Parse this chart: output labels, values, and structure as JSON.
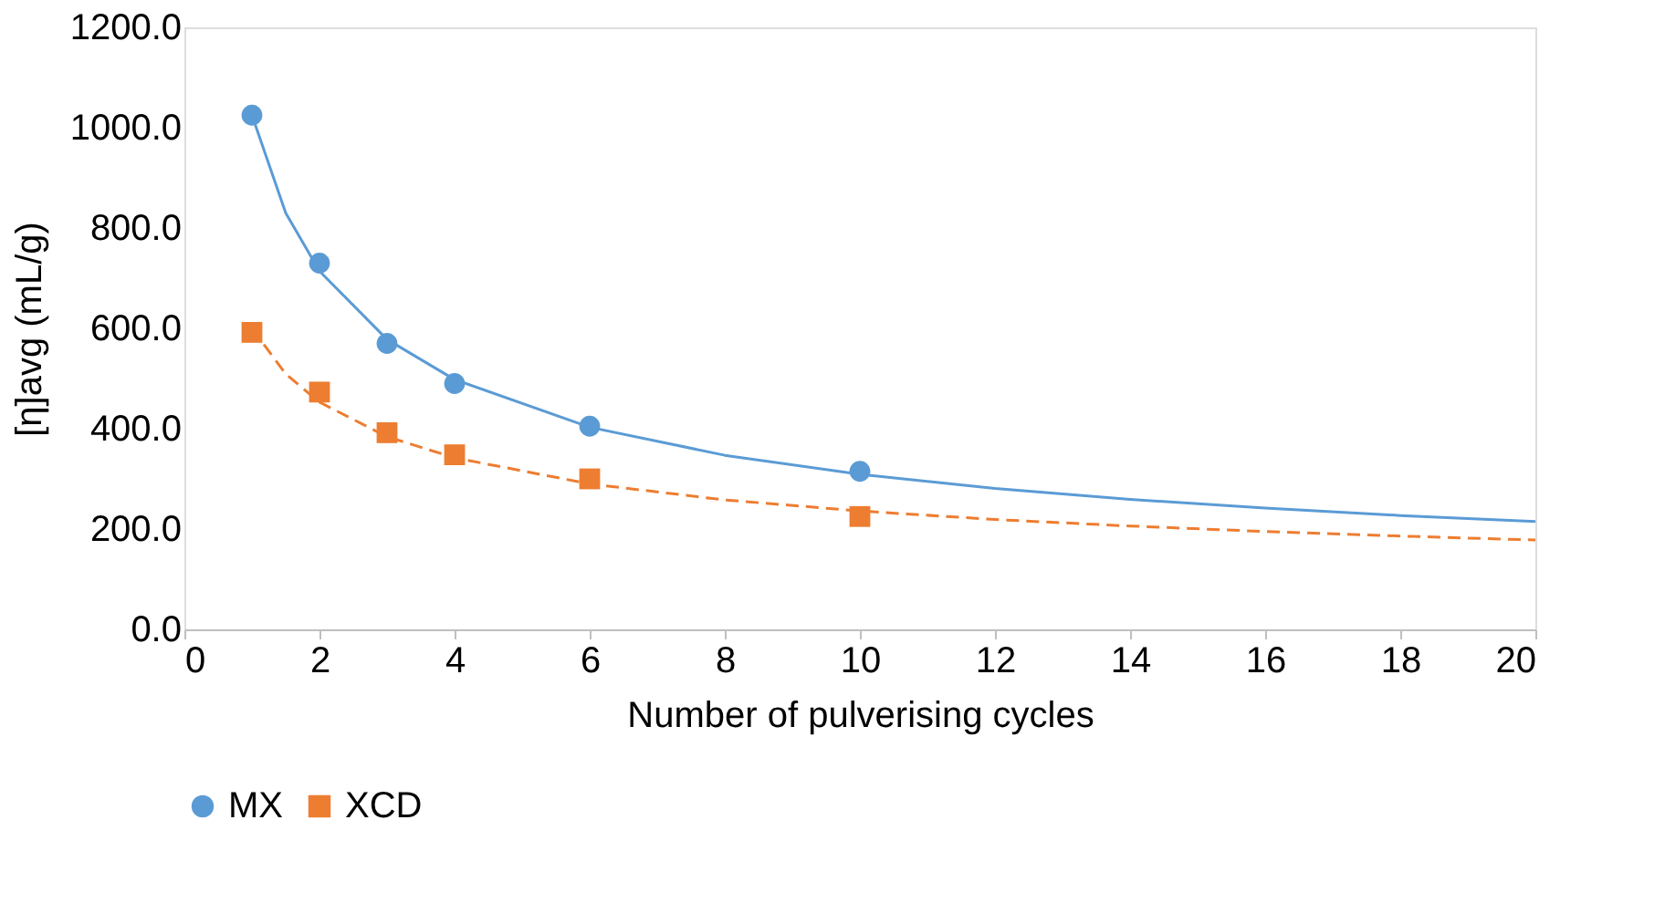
{
  "chart_data": {
    "type": "scatter",
    "xlabel": "Number of pulverising cycles",
    "ylabel": "[η]avg (mL/g)",
    "xlim": [
      0,
      20
    ],
    "xticks": [
      0,
      2,
      4,
      6,
      8,
      10,
      12,
      14,
      16,
      18,
      20
    ],
    "ylim": [
      0,
      1200
    ],
    "yticks": [
      {
        "value": 0,
        "label": "0.0"
      },
      {
        "value": 200,
        "label": "200.0"
      },
      {
        "value": 400,
        "label": "400.0"
      },
      {
        "value": 600,
        "label": "600.0"
      },
      {
        "value": 800,
        "label": "800.0"
      },
      {
        "value": 1000,
        "label": "1000.0"
      },
      {
        "value": 1200,
        "label": "1200.0"
      }
    ],
    "grid": false,
    "legend": "bottom",
    "series": [
      {
        "name": "MX",
        "marker": "circle",
        "color": "#5b9bd5",
        "x": [
          1,
          2,
          3,
          4,
          6,
          10
        ],
        "values": [
          1025,
          730,
          570,
          490,
          405,
          315
        ]
      },
      {
        "name": "XCD",
        "marker": "square",
        "color": "#ed7d31",
        "x": [
          1,
          2,
          3,
          4,
          6,
          10
        ],
        "values": [
          592,
          473,
          392,
          348,
          300,
          225
        ]
      },
      {
        "type": "line",
        "line_style": "solid",
        "color": "#5b9bd5",
        "x": [
          1,
          1.5,
          2,
          3,
          4,
          6,
          8,
          10,
          12,
          14,
          16,
          18,
          20
        ],
        "values": [
          1025,
          830,
          714,
          578,
          498,
          403,
          347,
          309,
          281,
          259,
          242,
          227,
          215
        ]
      },
      {
        "type": "line",
        "line_style": "dashed",
        "color": "#ed7d31",
        "x": [
          1,
          1.5,
          2,
          3,
          4,
          6,
          8,
          10,
          12,
          14,
          16,
          18,
          20
        ],
        "values": [
          600,
          509,
          453,
          384,
          342,
          290,
          258,
          236,
          219,
          206,
          195,
          186,
          178
        ]
      }
    ]
  }
}
